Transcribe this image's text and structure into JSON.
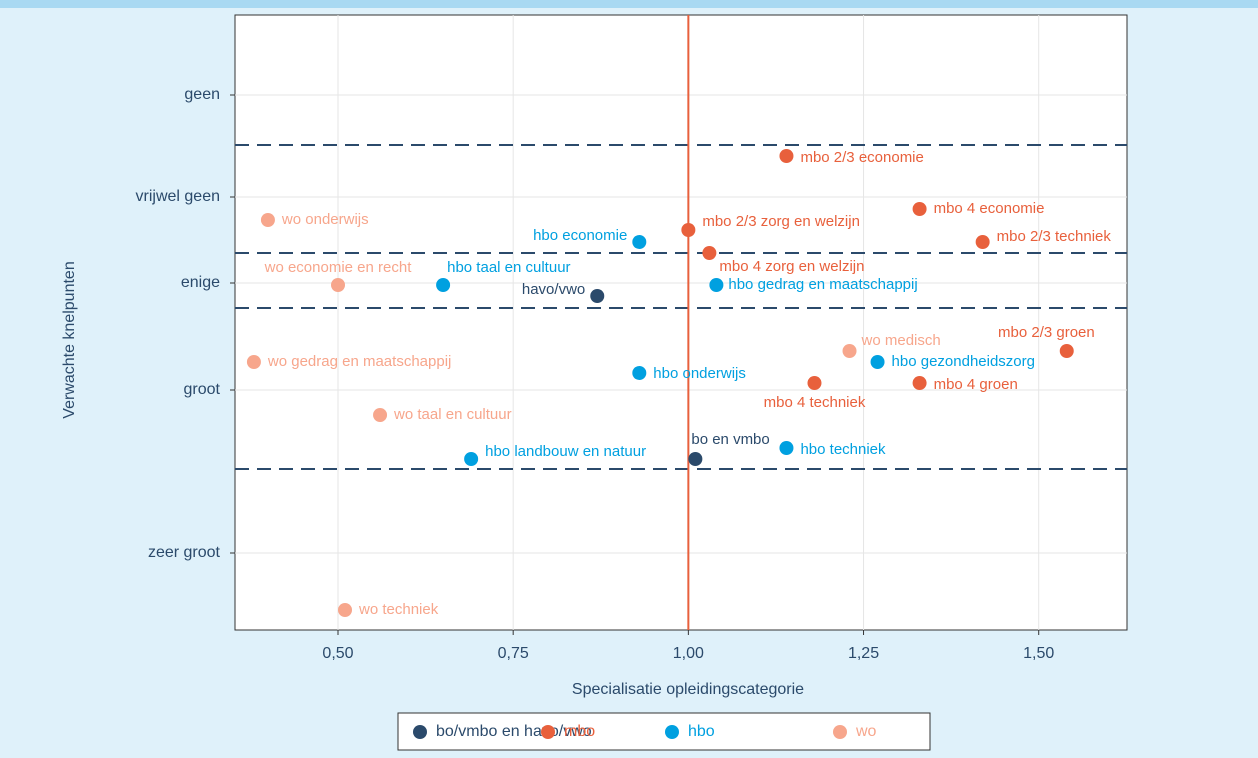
{
  "chart_data": {
    "type": "scatter",
    "x_label": "Specialisatie opleidingscategorie",
    "y_label": "Verwachte knelpunten",
    "xlim": [
      0.353,
      1.626
    ],
    "ylim": [
      0,
      6.15
    ],
    "xticks": [
      {
        "value": 0.5,
        "label": "0,50"
      },
      {
        "value": 0.75,
        "label": "0,75"
      },
      {
        "value": 1.0,
        "label": "1,00"
      },
      {
        "value": 1.25,
        "label": "1,25"
      },
      {
        "value": 1.5,
        "label": "1,50"
      }
    ],
    "yticks": [
      {
        "value": 5.35,
        "label": "geen"
      },
      {
        "value": 4.33,
        "label": "vrijwel geen"
      },
      {
        "value": 3.47,
        "label": "enige"
      },
      {
        "value": 2.4,
        "label": "groot"
      },
      {
        "value": 0.77,
        "label": "zeer groot"
      }
    ],
    "grid": true,
    "vline": {
      "value": 1.0,
      "color": "#e8603c"
    },
    "hlines": {
      "values": [
        4.85,
        3.77,
        3.22,
        1.61
      ],
      "color": "#2b4a6b"
    },
    "legend": "bottom",
    "series": [
      {
        "name": "bo/vmbo en havo/vwo",
        "color": "#2b4a6b",
        "labels": [
          "havo/vwo",
          "bo en vmbo"
        ],
        "x": [
          0.87,
          1.01
        ],
        "y": [
          3.34,
          1.71
        ]
      },
      {
        "name": "mbo",
        "color": "#e8603c",
        "labels": [
          "mbo 2/3 economie",
          "mbo 4 economie",
          "mbo 2/3 techniek",
          "mbo 2/3 zorg en welzijn",
          "mbo 4 zorg en welzijn",
          "mbo 2/3 groen",
          "mbo 4 techniek",
          "mbo 4 groen"
        ],
        "x": [
          1.14,
          1.33,
          1.42,
          1.0,
          1.03,
          1.54,
          1.18,
          1.33
        ],
        "y": [
          4.74,
          4.21,
          3.88,
          4.0,
          3.77,
          2.79,
          2.47,
          2.47
        ]
      },
      {
        "name": "hbo",
        "color": "#00a0e0",
        "labels": [
          "hbo economie",
          "hbo taal en cultuur",
          "hbo gedrag en maatschappij",
          "hbo onderwijs",
          "hbo gezondheidszorg",
          "hbo landbouw en natuur",
          "hbo techniek"
        ],
        "x": [
          0.93,
          0.65,
          1.04,
          0.93,
          1.27,
          0.69,
          1.14
        ],
        "y": [
          3.88,
          3.45,
          3.45,
          2.57,
          2.68,
          1.71,
          1.82
        ]
      },
      {
        "name": "wo",
        "color": "#f7a68c",
        "labels": [
          "wo onderwijs",
          "wo economie en recht",
          "wo gedrag en maatschappij",
          "wo taal en cultuur",
          "wo medisch",
          "wo techniek"
        ],
        "x": [
          0.4,
          0.5,
          0.38,
          0.56,
          1.23,
          0.51
        ],
        "y": [
          4.1,
          3.45,
          2.68,
          2.15,
          2.79,
          0.2
        ]
      }
    ]
  }
}
